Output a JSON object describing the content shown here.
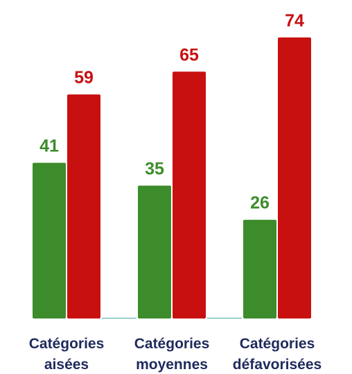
{
  "chart_data": {
    "type": "bar",
    "title": "",
    "xlabel": "",
    "ylabel": "",
    "categories": [
      [
        "Catégories",
        "aisées"
      ],
      [
        "Catégories",
        "moyennes"
      ],
      [
        "Catégories",
        "défavorisées"
      ]
    ],
    "series": [
      {
        "color": "#3d8c2b",
        "values": [
          41,
          35,
          26
        ]
      },
      {
        "color": "#c81010",
        "values": [
          59,
          65,
          74
        ]
      }
    ],
    "ylim": [
      0,
      80
    ],
    "grid": false,
    "legend": "none"
  }
}
